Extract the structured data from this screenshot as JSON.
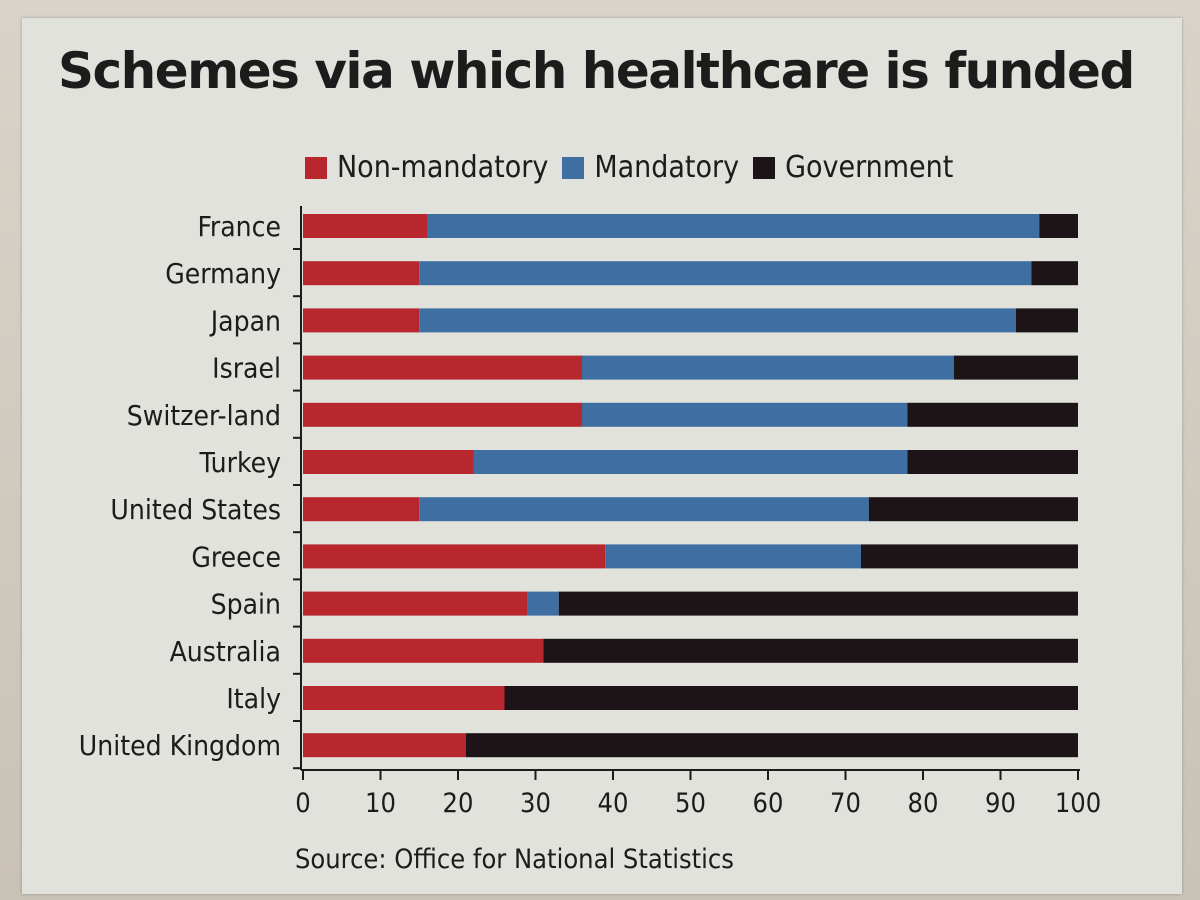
{
  "chart_data": {
    "type": "bar",
    "orientation": "horizontal-stacked",
    "title": "Schemes via which healthcare is funded",
    "source": "Source: Office for National Statistics",
    "categories": [
      "France",
      "Germany",
      "Japan",
      "Israel",
      "Switzer-land",
      "Turkey",
      "United States",
      "Greece",
      "Spain",
      "Australia",
      "Italy",
      "United Kingdom"
    ],
    "series": [
      {
        "name": "Non-mandatory",
        "color": "#b8262e",
        "values": [
          16,
          15,
          15,
          36,
          36,
          22,
          15,
          39,
          29,
          31,
          26,
          21
        ]
      },
      {
        "name": "Mandatory",
        "color": "#3f6ea3",
        "values": [
          79,
          79,
          77,
          48,
          42,
          56,
          58,
          33,
          4,
          0,
          0,
          0
        ]
      },
      {
        "name": "Government",
        "color": "#1c1416",
        "values": [
          5,
          6,
          8,
          16,
          22,
          22,
          27,
          28,
          67,
          69,
          74,
          79
        ]
      }
    ],
    "xlim": [
      0,
      100
    ],
    "xticks": [
      "0",
      "10",
      "20",
      "30",
      "40",
      "50",
      "60",
      "70",
      "80",
      "90",
      "100"
    ]
  }
}
